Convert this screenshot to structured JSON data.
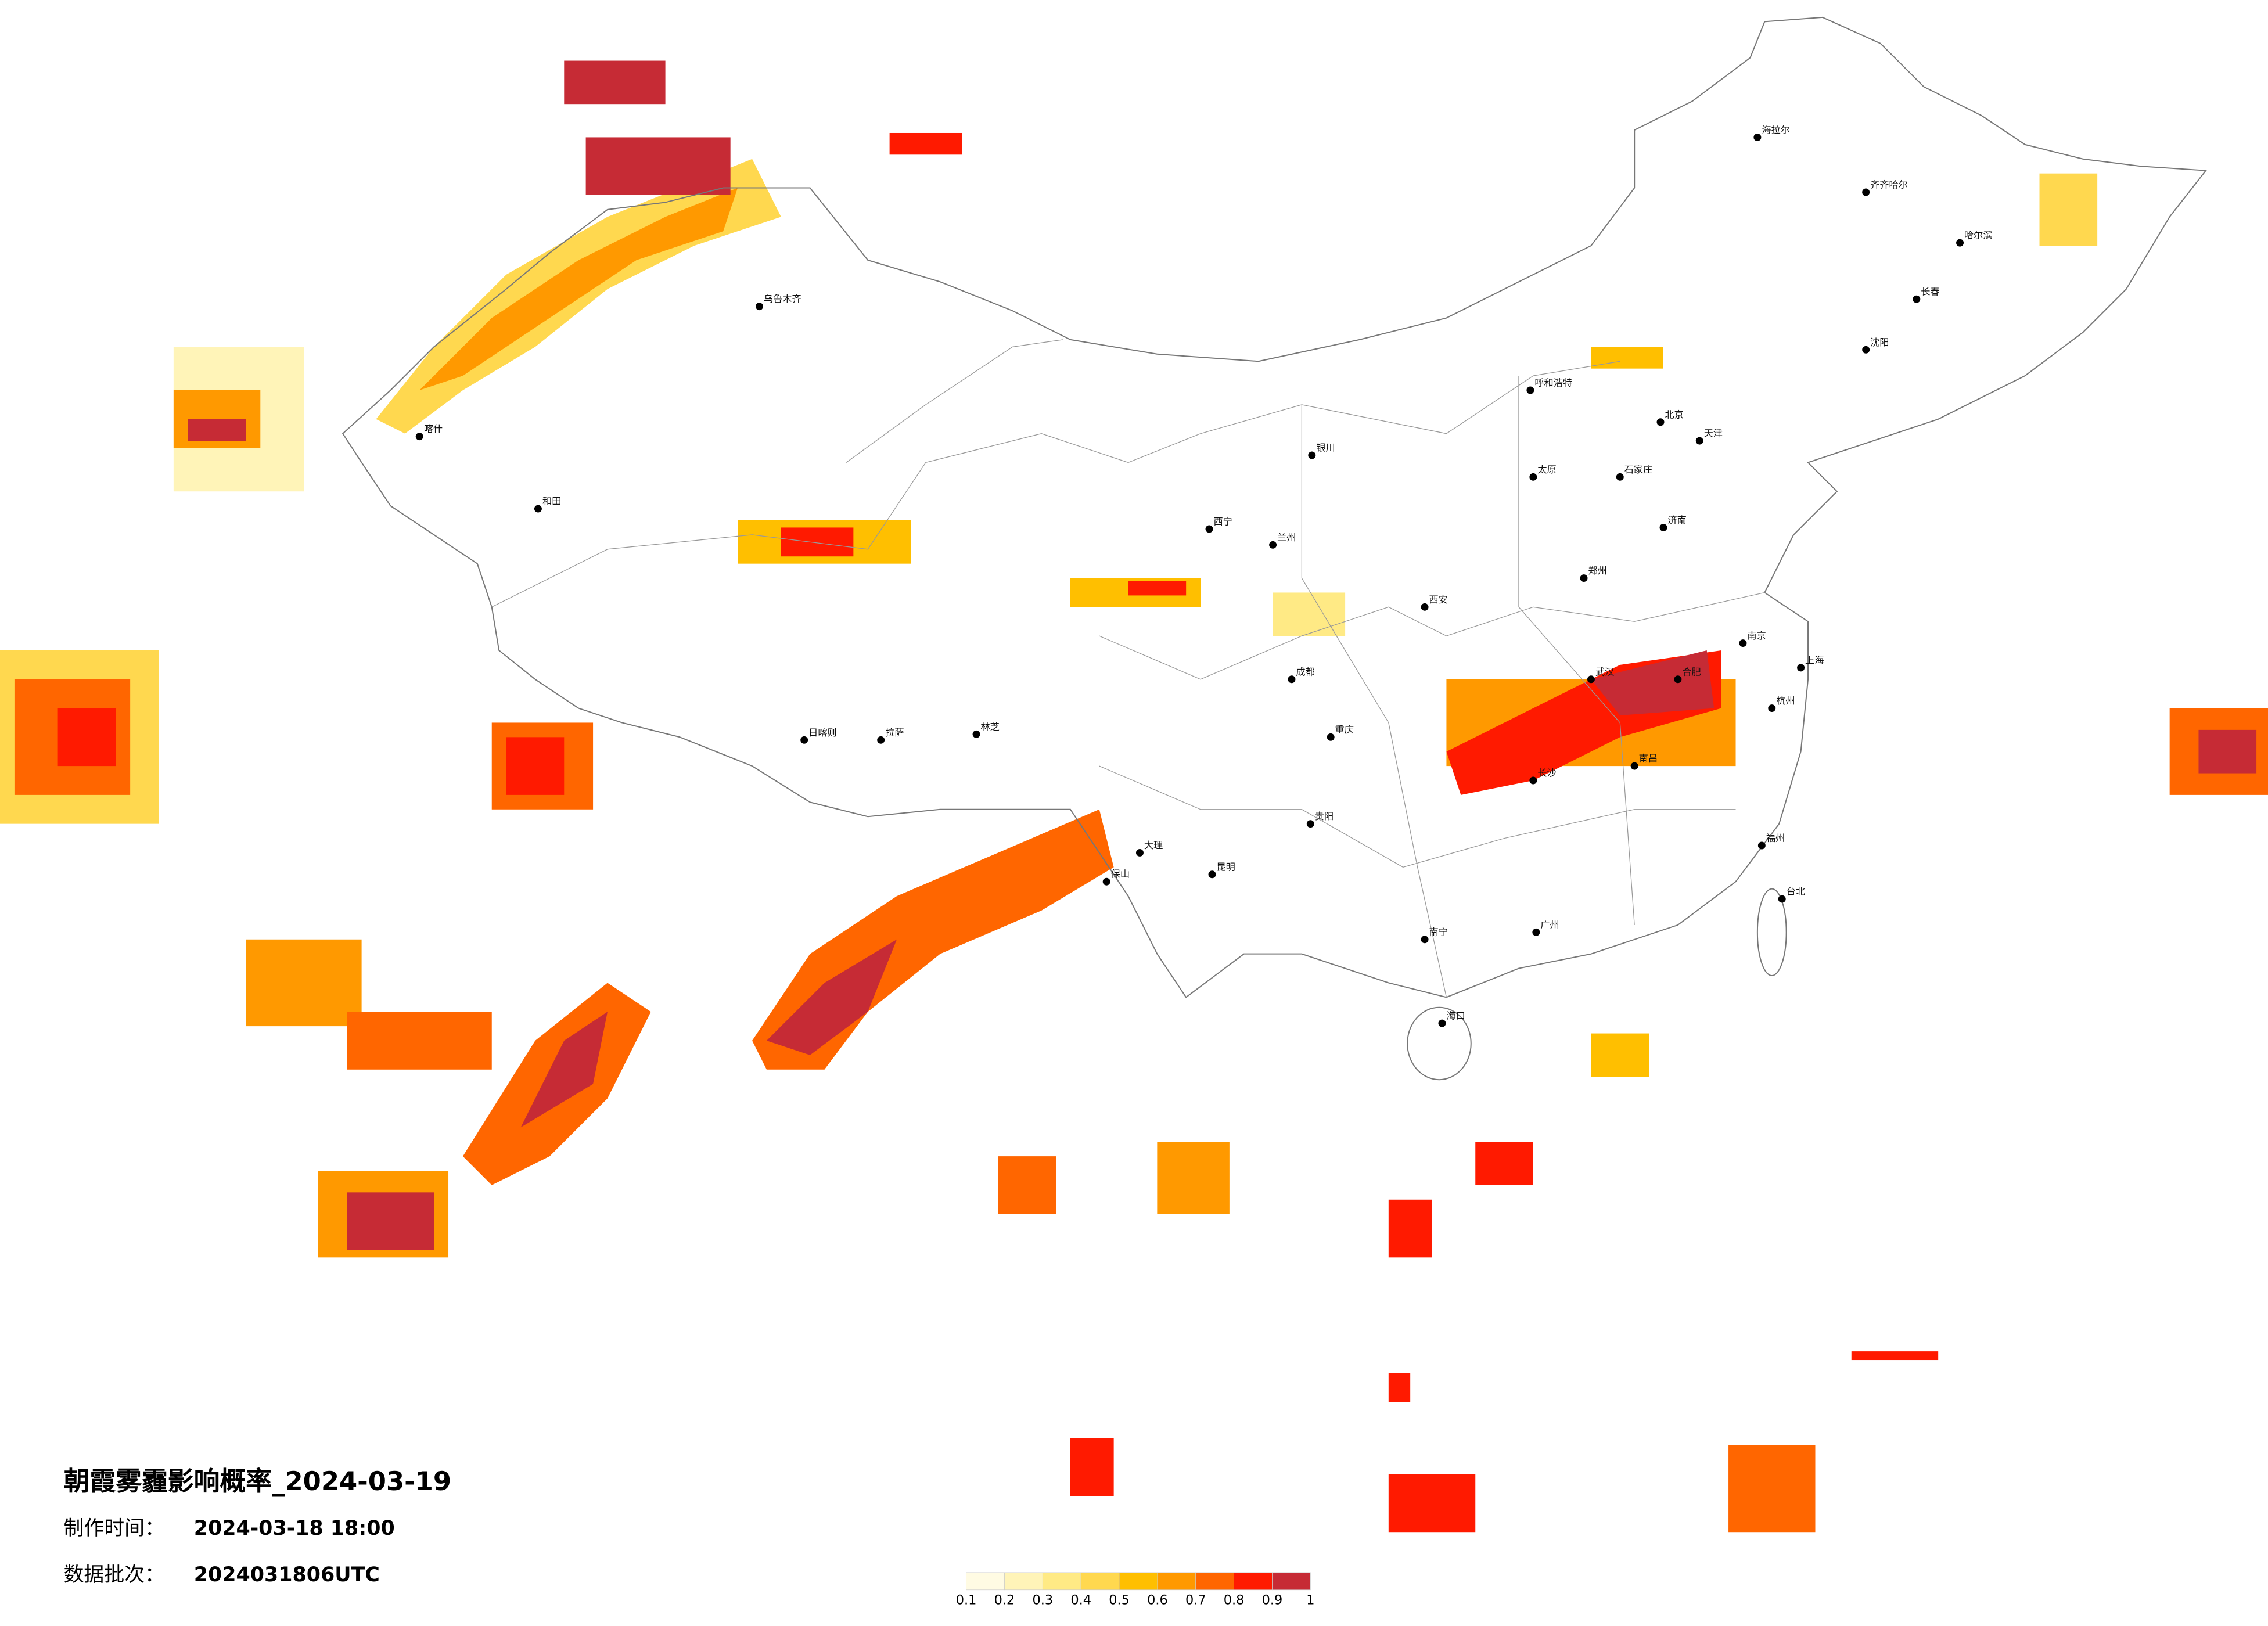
{
  "title": "朝霞雾霾影响概率_2024-03-19",
  "production_label": "制作时间：",
  "production_time": "2024-03-18 18:00",
  "batch_label": "数据批次：",
  "batch": "2024031806UTC",
  "colorbar": {
    "colors": [
      "#fffbe3",
      "#fff4b8",
      "#ffea85",
      "#ffd84f",
      "#ffbf00",
      "#ff9900",
      "#ff6600",
      "#ff1a00",
      "#c62b35"
    ],
    "ticks": [
      0.1,
      0.2,
      0.3,
      0.4,
      0.5,
      0.6,
      0.7,
      0.8,
      0.9,
      1
    ]
  },
  "cities": [
    "海拉尔",
    "齐齐哈尔",
    "哈尔滨",
    "长春",
    "沈阳",
    "呼和浩特",
    "北京",
    "天津",
    "石家庄",
    "太原",
    "济南",
    "郑州",
    "西安",
    "兰州",
    "西宁",
    "银川",
    "乌鲁木齐",
    "喀什",
    "和田",
    "拉萨",
    "林芝",
    "日喀则",
    "成都",
    "重庆",
    "贵阳",
    "昆明",
    "南宁",
    "广州",
    "长沙",
    "武汉",
    "南昌",
    "合肥",
    "南京",
    "上海",
    "杭州",
    "福州",
    "台北",
    "海口",
    "大理",
    "保山"
  ]
}
